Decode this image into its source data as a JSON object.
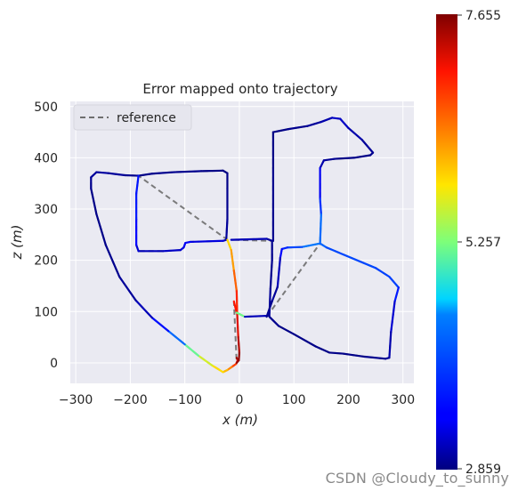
{
  "watermark": "CSDN @Cloudy_to_sunny",
  "chart_data": {
    "type": "line",
    "title": "Error mapped onto trajectory",
    "xlabel": "x (m)",
    "ylabel": "z (m)",
    "xlim": [
      -310,
      320
    ],
    "ylim": [
      -40,
      510
    ],
    "xticks": [
      -300,
      -200,
      -100,
      0,
      100,
      200,
      300
    ],
    "yticks": [
      0,
      100,
      200,
      300,
      400,
      500
    ],
    "grid": true,
    "legend": {
      "position": "top-left",
      "entries": [
        "reference"
      ]
    },
    "colorbar": {
      "min": 2.859,
      "max": 7.655,
      "tick_labels": [
        "7.655",
        "5.257",
        "2.859"
      ],
      "colormap": "jet"
    },
    "reference": [
      [
        -5,
        10
      ],
      [
        -3,
        5
      ],
      [
        -6,
        -2
      ],
      [
        -14,
        -8
      ],
      [
        -22,
        -14
      ],
      [
        -30,
        -18
      ],
      [
        -50,
        -5
      ],
      [
        -75,
        14
      ],
      [
        -100,
        36
      ],
      [
        -130,
        62
      ],
      [
        -160,
        88
      ],
      [
        -190,
        122
      ],
      [
        -220,
        168
      ],
      [
        -245,
        230
      ],
      [
        -262,
        290
      ],
      [
        -272,
        340
      ],
      [
        -272,
        362
      ],
      [
        -262,
        372
      ],
      [
        -240,
        370
      ],
      [
        -210,
        366
      ],
      [
        -185,
        365
      ],
      [
        -160,
        369
      ],
      [
        -120,
        372
      ],
      [
        -70,
        374
      ],
      [
        -30,
        375
      ],
      [
        -22,
        370
      ],
      [
        -22,
        340
      ],
      [
        -22,
        280
      ],
      [
        -24,
        240
      ],
      [
        -30,
        238
      ],
      [
        -90,
        236
      ],
      [
        -99,
        234
      ],
      [
        -102,
        225
      ],
      [
        -108,
        220
      ],
      [
        -140,
        218
      ],
      [
        -185,
        218
      ],
      [
        -189,
        230
      ],
      [
        -189,
        280
      ],
      [
        -189,
        330
      ],
      [
        -185,
        365
      ],
      [
        -22,
        240
      ],
      [
        -15,
        220
      ],
      [
        -10,
        180
      ],
      [
        -5,
        140
      ],
      [
        -4,
        95
      ],
      [
        -2,
        50
      ],
      [
        0,
        20
      ],
      [
        -1,
        5
      ],
      [
        -5,
        0
      ],
      [
        -10,
        120
      ],
      [
        -5,
        98
      ],
      [
        10,
        90
      ],
      [
        55,
        92
      ],
      [
        57,
        145
      ],
      [
        60,
        200
      ],
      [
        60,
        238
      ],
      [
        50,
        242
      ],
      [
        -15,
        240
      ],
      [
        62,
        238
      ],
      [
        62,
        380
      ],
      [
        62,
        450
      ],
      [
        90,
        456
      ],
      [
        125,
        462
      ],
      [
        150,
        470
      ],
      [
        170,
        478
      ],
      [
        185,
        476
      ],
      [
        200,
        458
      ],
      [
        225,
        435
      ],
      [
        245,
        410
      ],
      [
        240,
        405
      ],
      [
        210,
        400
      ],
      [
        175,
        398
      ],
      [
        155,
        395
      ],
      [
        148,
        380
      ],
      [
        148,
        320
      ],
      [
        150,
        290
      ],
      [
        148,
        233
      ],
      [
        115,
        226
      ],
      [
        88,
        225
      ],
      [
        78,
        222
      ],
      [
        75,
        205
      ],
      [
        70,
        148
      ],
      [
        60,
        120
      ],
      [
        50,
        90
      ],
      [
        148,
        233
      ],
      [
        160,
        225
      ],
      [
        250,
        185
      ],
      [
        275,
        168
      ],
      [
        292,
        147
      ],
      [
        285,
        120
      ],
      [
        278,
        60
      ],
      [
        275,
        10
      ],
      [
        268,
        8
      ],
      [
        230,
        12
      ],
      [
        190,
        18
      ],
      [
        165,
        20
      ],
      [
        140,
        32
      ],
      [
        100,
        56
      ],
      [
        72,
        72
      ],
      [
        55,
        90
      ]
    ],
    "series": [
      {
        "values": [
          [
            -5,
            10,
            7.6
          ],
          [
            -3,
            5,
            7.4
          ],
          [
            -6,
            -2,
            7.0
          ],
          [
            -14,
            -8,
            6.6
          ],
          [
            -22,
            -14,
            6.2
          ],
          [
            -30,
            -18,
            6.0
          ],
          [
            -50,
            -5,
            5.8
          ],
          [
            -75,
            14,
            5.5
          ],
          [
            -100,
            36,
            4.8
          ],
          [
            -130,
            62,
            3.8
          ],
          [
            -160,
            88,
            3.2
          ],
          [
            -190,
            122,
            3.0
          ],
          [
            -220,
            168,
            2.95
          ],
          [
            -245,
            230,
            2.9
          ],
          [
            -262,
            290,
            2.9
          ],
          [
            -272,
            340,
            2.9
          ],
          [
            -272,
            362,
            2.95
          ],
          [
            -262,
            372,
            3.0
          ],
          [
            -240,
            370,
            3.0
          ],
          [
            -210,
            366,
            2.95
          ],
          [
            -185,
            365,
            2.9
          ],
          [
            -160,
            369,
            2.9
          ],
          [
            -120,
            372,
            2.95
          ],
          [
            -70,
            374,
            2.9
          ],
          [
            -30,
            375,
            2.88
          ],
          [
            -22,
            370,
            2.88
          ],
          [
            -22,
            340,
            2.9
          ],
          [
            -22,
            280,
            2.95
          ],
          [
            -24,
            240,
            3.0
          ],
          [
            -30,
            238,
            3.2
          ],
          [
            -90,
            236,
            3.3
          ],
          [
            -99,
            234,
            3.4
          ],
          [
            -102,
            225,
            3.3
          ],
          [
            -108,
            220,
            3.2
          ],
          [
            -140,
            218,
            3.1
          ],
          [
            -185,
            218,
            3.1
          ],
          [
            -189,
            230,
            3.3
          ],
          [
            -189,
            280,
            3.5
          ],
          [
            -189,
            330,
            3.7
          ],
          [
            -185,
            365,
            3.4
          ]
        ]
      },
      {
        "values": [
          [
            -22,
            240,
            5.8
          ],
          [
            -15,
            220,
            6.1
          ],
          [
            -10,
            180,
            6.4
          ],
          [
            -5,
            140,
            6.8
          ],
          [
            -4,
            95,
            7.1
          ],
          [
            -2,
            50,
            7.3
          ],
          [
            0,
            20,
            7.5
          ],
          [
            -1,
            5,
            7.6
          ],
          [
            -5,
            0,
            7.5
          ]
        ]
      },
      {
        "values": [
          [
            -10,
            120,
            6.9
          ],
          [
            -5,
            98,
            7.2
          ],
          [
            10,
            90,
            3.2
          ],
          [
            55,
            92,
            3.0
          ],
          [
            57,
            145,
            2.95
          ],
          [
            60,
            200,
            2.9
          ],
          [
            60,
            238,
            2.95
          ],
          [
            50,
            242,
            3.0
          ],
          [
            -15,
            240,
            3.2
          ]
        ]
      },
      {
        "values": [
          [
            62,
            238,
            2.95
          ],
          [
            62,
            380,
            2.9
          ],
          [
            62,
            450,
            2.88
          ],
          [
            90,
            456,
            2.9
          ],
          [
            125,
            462,
            2.95
          ],
          [
            150,
            470,
            3.0
          ],
          [
            170,
            478,
            3.1
          ],
          [
            185,
            476,
            3.2
          ],
          [
            200,
            458,
            3.1
          ],
          [
            225,
            435,
            3.0
          ],
          [
            245,
            410,
            2.95
          ],
          [
            240,
            405,
            2.9
          ],
          [
            210,
            400,
            2.9
          ],
          [
            175,
            398,
            2.9
          ],
          [
            155,
            395,
            3.0
          ],
          [
            148,
            380,
            3.1
          ],
          [
            148,
            320,
            3.6
          ],
          [
            150,
            290,
            4.0
          ],
          [
            148,
            233,
            4.6
          ],
          [
            115,
            226,
            4.2
          ],
          [
            88,
            225,
            3.8
          ],
          [
            78,
            222,
            3.6
          ],
          [
            75,
            205,
            3.2
          ],
          [
            70,
            148,
            3.0
          ],
          [
            60,
            120,
            2.95
          ],
          [
            50,
            90,
            2.9
          ]
        ]
      },
      {
        "values": [
          [
            148,
            233,
            4.4
          ],
          [
            160,
            225,
            4.1
          ],
          [
            250,
            185,
            3.9
          ],
          [
            275,
            168,
            4.0
          ],
          [
            292,
            147,
            3.9
          ],
          [
            285,
            120,
            3.3
          ],
          [
            278,
            60,
            3.1
          ],
          [
            275,
            10,
            3.0
          ],
          [
            268,
            8,
            2.95
          ],
          [
            230,
            12,
            2.9
          ],
          [
            190,
            18,
            2.9
          ],
          [
            165,
            20,
            2.9
          ],
          [
            140,
            32,
            2.9
          ],
          [
            100,
            56,
            2.9
          ],
          [
            72,
            72,
            2.9
          ],
          [
            55,
            90,
            2.95
          ]
        ]
      }
    ]
  }
}
